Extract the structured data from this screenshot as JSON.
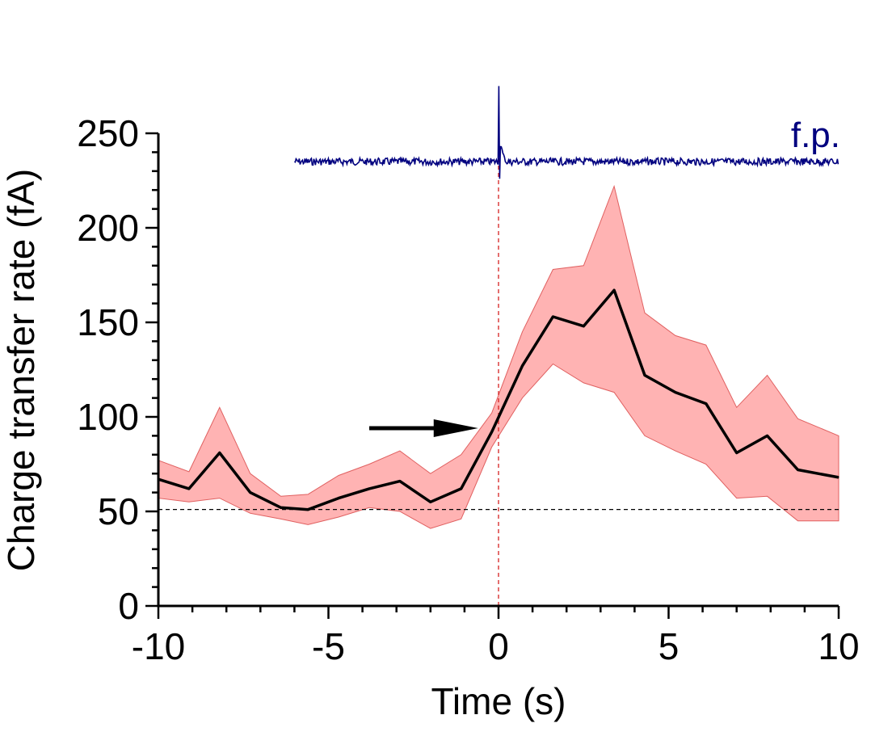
{
  "chart_data": {
    "type": "line",
    "xlabel": "Time (s)",
    "ylabel": "Charge transfer rate (fA)",
    "xlim": [
      -10,
      10
    ],
    "ylim": [
      0,
      250
    ],
    "xticks": [
      -10,
      -5,
      0,
      5,
      10
    ],
    "yticks": [
      0,
      50,
      100,
      150,
      200,
      250
    ],
    "grid": false,
    "series": [
      {
        "x": [
          -10,
          -9.1,
          -8.2,
          -7.3,
          -6.4,
          -5.6,
          -4.7,
          -3.8,
          -2.9,
          -2.0,
          -1.1,
          -0.2,
          0.7,
          1.6,
          2.5,
          3.4,
          4.3,
          5.2,
          6.1,
          7.0,
          7.9,
          8.8,
          10
        ],
        "values": [
          67,
          62,
          81,
          60,
          52,
          51,
          57,
          62,
          66,
          55,
          62,
          92,
          127,
          153,
          148,
          167,
          122,
          113,
          107,
          81,
          90,
          72,
          68
        ],
        "lower": [
          57,
          55,
          57,
          49,
          46,
          43,
          47,
          52,
          50,
          41,
          46,
          84,
          110,
          128,
          118,
          113,
          90,
          82,
          75,
          57,
          58,
          45,
          45
        ],
        "upper": [
          77,
          71,
          105,
          70,
          58,
          59,
          69,
          75,
          82,
          70,
          80,
          102,
          145,
          178,
          180,
          222,
          155,
          143,
          138,
          105,
          122,
          99,
          90
        ],
        "color": "#000000",
        "band_color": "#ffb3b3"
      }
    ],
    "baseline_y": 51,
    "event_x": 0,
    "arrow": {
      "x_start": -3.8,
      "x_end": -0.6,
      "y": 94
    },
    "field_potential": {
      "label": "f.p.",
      "color": "#00007f",
      "x_start": -6,
      "x_end": 10,
      "level": 235,
      "spike_time": 0,
      "spike_peak": 275,
      "spike_trough": 226
    }
  }
}
